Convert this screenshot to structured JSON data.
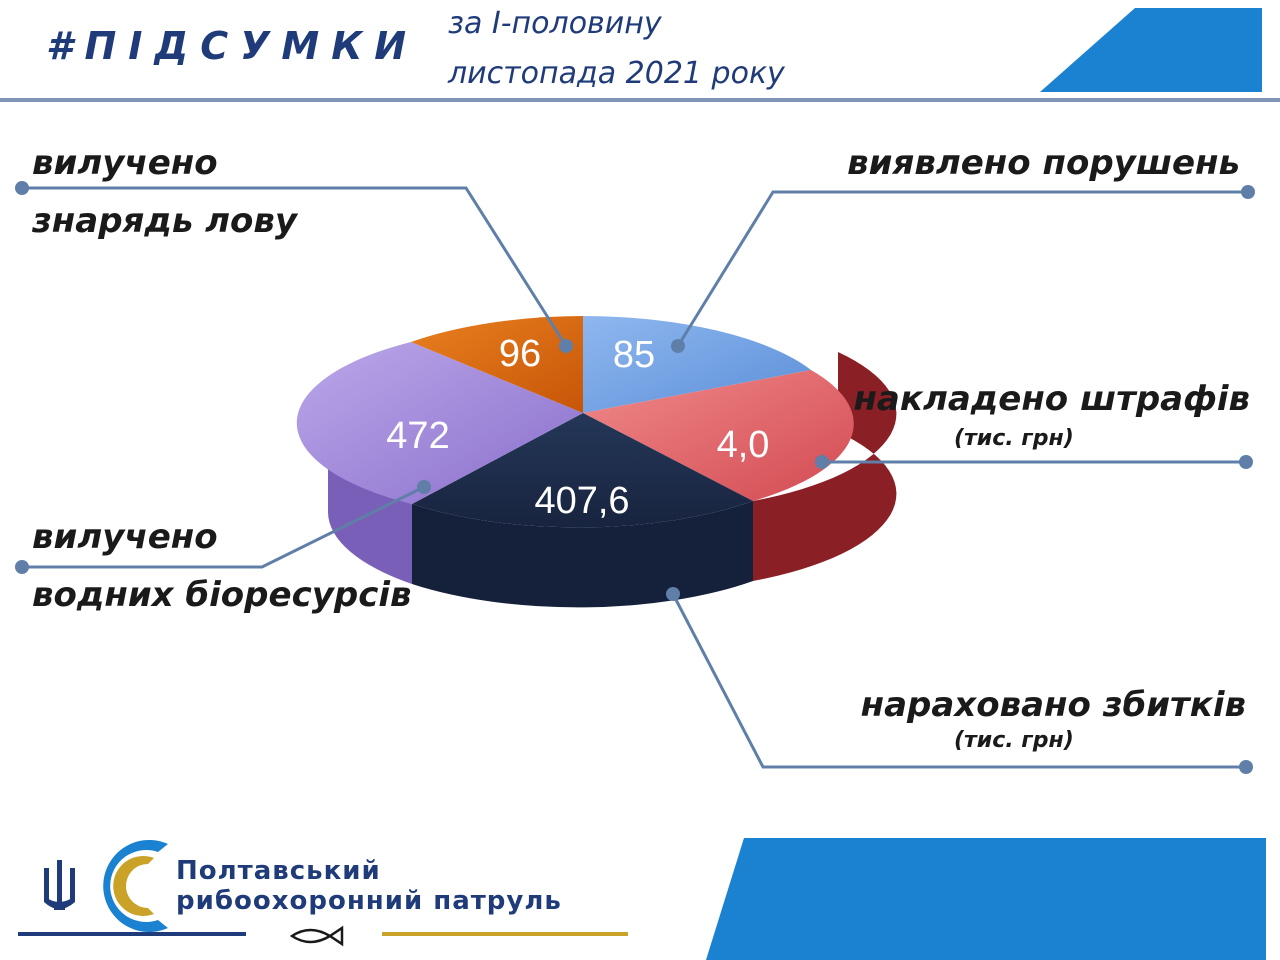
{
  "header": {
    "hashtag": "#ПІДСУМКИ",
    "subtitle_line1": "за І-половину",
    "subtitle_line2": "листопада 2021 року"
  },
  "labels": {
    "gear_line1": "вилучено",
    "gear_line2": "знарядь лову",
    "violations": "виявлено порушень",
    "fines": "накладено штрафів",
    "fines_unit": "(тис. грн)",
    "bio_line1": "вилучено",
    "bio_line2": "водних біоресурсів",
    "damages": "нараховано збитків",
    "damages_unit": "(тис. грн)"
  },
  "chart_data": {
    "type": "pie",
    "style": "3d",
    "slices": [
      {
        "label": "виявлено порушень",
        "value_label": "85",
        "value": 85,
        "color": "#6f9de0"
      },
      {
        "label": "накладено штрафів (тис. грн)",
        "value_label": "4,0",
        "value": 4.0,
        "color": "#e06b6e"
      },
      {
        "label": "нараховано збитків (тис. грн)",
        "value_label": "407,6",
        "value": 407.6,
        "color": "#1d2c4d"
      },
      {
        "label": "вилучено водних біоресурсів",
        "value_label": "472",
        "value": 472,
        "color": "#9b84d6"
      },
      {
        "label": "вилучено знарядь лову",
        "value_label": "96",
        "value": 96,
        "color": "#d8650f"
      }
    ]
  },
  "footer": {
    "org_line1": "Полтавський",
    "org_line2": "рибоохоронний патруль",
    "accent_blue": "#1a82d0",
    "accent_gold": "#c9a227"
  }
}
